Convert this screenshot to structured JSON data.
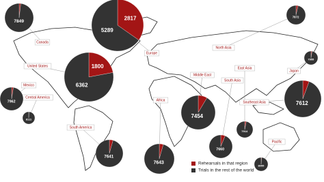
{
  "series": [
    {
      "name": "Rehearsals in that region",
      "color": "#a31515"
    },
    {
      "name": "Trials in the rest of the world",
      "color": "#333333"
    }
  ],
  "regions": [
    {
      "name": "Canada",
      "rehearsals": 150,
      "trials": 7849
    },
    {
      "name": "Europe",
      "rehearsals": 2817,
      "trials": 5289
    },
    {
      "name": "United States",
      "rehearsals": 1800,
      "trials": 6362
    },
    {
      "name": "Mexico",
      "rehearsals": 200,
      "trials": 7962
    },
    {
      "name": "Central America",
      "rehearsals": 50,
      "trials": 8111
    },
    {
      "name": "South America",
      "rehearsals": 350,
      "trials": 7641
    },
    {
      "name": "Africa",
      "rehearsals": 350,
      "trials": 7643
    },
    {
      "name": "Middle East",
      "rehearsals": 700,
      "trials": 7454
    },
    {
      "name": "South Asia",
      "rehearsals": 500,
      "trials": 7660
    },
    {
      "name": "Southeast Asia",
      "rehearsals": 450,
      "trials": 7612
    },
    {
      "name": "East Asia",
      "rehearsals": 250,
      "trials": 7914
    },
    {
      "name": "Pacific",
      "rehearsals": 100,
      "trials": 8055
    },
    {
      "name": "North Asia",
      "rehearsals": 300,
      "trials": 7872
    },
    {
      "name": "Japan",
      "rehearsals": 200,
      "trials": 7955
    }
  ]
}
